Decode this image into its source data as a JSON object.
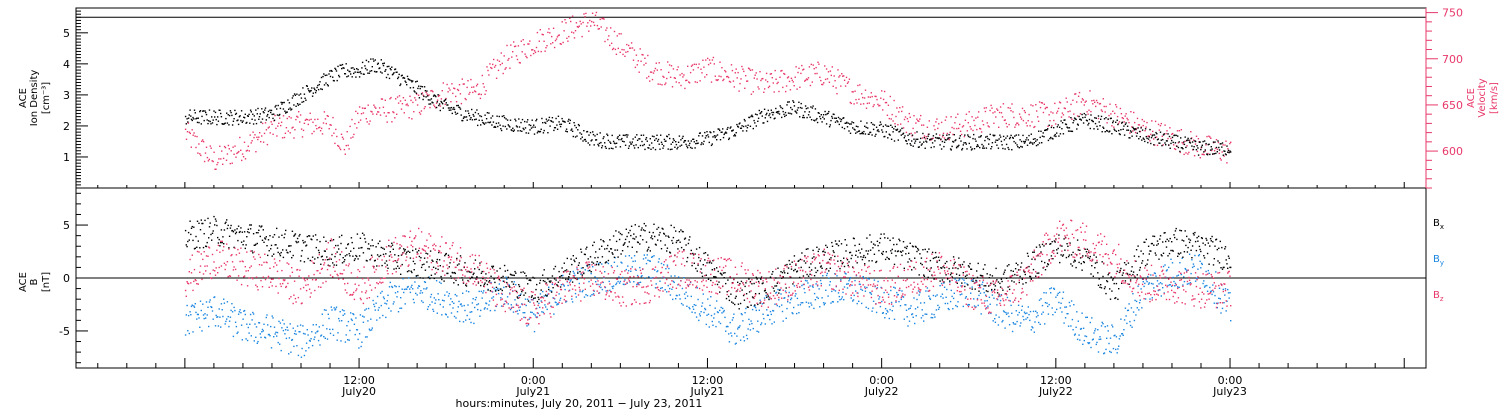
{
  "colors": {
    "black": "#000000",
    "pink": "#e8386a",
    "blue": "#1a86e0"
  },
  "chart_data": [
    {
      "type": "scatter",
      "panel": "top",
      "left_axis": {
        "label_lines": [
          "ACE",
          "Ion Density"
        ],
        "unit": "[cm⁻³]",
        "ticks": [
          "1",
          "2",
          "3",
          "4",
          "5"
        ],
        "ylim": [
          0.0,
          5.8
        ]
      },
      "right_axis": {
        "label_lines": [
          "ACE",
          "Velocity"
        ],
        "unit": "[km/s]",
        "ticks": [
          "600",
          "650",
          "700",
          "750"
        ],
        "ylim": [
          560,
          755
        ]
      },
      "series": [
        {
          "color": "black",
          "axis": "left",
          "x": [
            0,
            2,
            4,
            6,
            8,
            10,
            11,
            12,
            13,
            14,
            16,
            18,
            20,
            22,
            24,
            26,
            28,
            30,
            32,
            34,
            36,
            38,
            40,
            42,
            44,
            46,
            48,
            50,
            52,
            54,
            56,
            58,
            60,
            62,
            64,
            66,
            68,
            70,
            72
          ],
          "y": [
            2.3,
            2.3,
            2.3,
            2.4,
            3.0,
            3.6,
            3.8,
            3.8,
            4.0,
            3.8,
            3.2,
            2.6,
            2.3,
            2.1,
            2.0,
            2.1,
            1.6,
            1.5,
            1.5,
            1.5,
            1.6,
            1.9,
            2.4,
            2.6,
            2.3,
            2.0,
            1.9,
            1.6,
            1.5,
            1.5,
            1.5,
            1.5,
            1.9,
            2.2,
            2.0,
            1.7,
            1.5,
            1.3,
            1.3
          ]
        },
        {
          "color": "pink",
          "axis": "right",
          "x": [
            0,
            2,
            4,
            6,
            8,
            10,
            11,
            12,
            13,
            14,
            16,
            18,
            20,
            22,
            24,
            26,
            28,
            30,
            32,
            34,
            36,
            38,
            40,
            42,
            44,
            46,
            48,
            50,
            52,
            54,
            56,
            58,
            60,
            62,
            64,
            66,
            68,
            70,
            72
          ],
          "y": [
            620,
            590,
            605,
            625,
            630,
            630,
            605,
            640,
            645,
            645,
            650,
            665,
            665,
            700,
            718,
            730,
            742,
            715,
            690,
            680,
            690,
            680,
            672,
            680,
            685,
            665,
            655,
            630,
            625,
            630,
            640,
            640,
            640,
            655,
            640,
            625,
            615,
            605,
            600
          ]
        }
      ],
      "ref_line_right": 745
    },
    {
      "type": "scatter",
      "panel": "bottom",
      "left_axis": {
        "label_lines": [
          "ACE",
          "B"
        ],
        "unit": "[nT]",
        "ticks": [
          "-5",
          "0",
          "5"
        ],
        "ylim": [
          -8.5,
          8.5
        ]
      },
      "zero_line": 0,
      "legend": [
        {
          "text": "B",
          "sub": "x",
          "color": "black"
        },
        {
          "text": "B",
          "sub": "y",
          "color": "blue"
        },
        {
          "text": "B",
          "sub": "z",
          "color": "pink"
        }
      ],
      "series": [
        {
          "color": "black",
          "x": [
            0,
            2,
            4,
            6,
            8,
            10,
            12,
            14,
            16,
            18,
            20,
            22,
            24,
            26,
            28,
            30,
            32,
            34,
            36,
            38,
            40,
            42,
            44,
            46,
            48,
            50,
            52,
            54,
            56,
            58,
            60,
            62,
            64,
            66,
            68,
            70,
            72
          ],
          "y": [
            4.0,
            4.5,
            4.0,
            3.5,
            3.0,
            2.5,
            3.0,
            2.0,
            1.5,
            1.0,
            0.5,
            0.0,
            -1.0,
            0.5,
            2.0,
            3.5,
            4.0,
            3.5,
            1.0,
            -1.5,
            -1.0,
            1.0,
            2.0,
            2.5,
            3.0,
            2.0,
            1.0,
            0.5,
            -0.5,
            1.0,
            3.0,
            2.0,
            -1.0,
            2.5,
            3.5,
            3.0,
            2.0
          ]
        },
        {
          "color": "blue",
          "x": [
            0,
            2,
            4,
            6,
            8,
            10,
            12,
            14,
            16,
            18,
            20,
            22,
            24,
            26,
            28,
            30,
            32,
            34,
            36,
            38,
            40,
            42,
            44,
            46,
            48,
            50,
            52,
            54,
            56,
            58,
            60,
            62,
            64,
            66,
            68,
            70,
            72
          ],
          "y": [
            -4.0,
            -3.0,
            -4.5,
            -5.0,
            -6.0,
            -4.0,
            -5.0,
            -2.0,
            -1.0,
            -2.0,
            -3.0,
            -1.0,
            -3.5,
            -1.0,
            0.0,
            0.5,
            1.0,
            -1.0,
            -3.0,
            -5.0,
            -3.0,
            -2.0,
            -1.0,
            -1.0,
            -2.0,
            -3.0,
            -2.0,
            -1.0,
            -3.0,
            -4.0,
            -2.0,
            -5.0,
            -6.0,
            -1.0,
            0.5,
            1.0,
            -3.0
          ]
        },
        {
          "color": "pink",
          "x": [
            0,
            2,
            4,
            6,
            8,
            10,
            12,
            14,
            16,
            18,
            20,
            22,
            24,
            26,
            28,
            30,
            32,
            34,
            36,
            38,
            40,
            42,
            44,
            46,
            48,
            50,
            52,
            54,
            56,
            58,
            60,
            62,
            64,
            66,
            68,
            70,
            72
          ],
          "y": [
            0.0,
            2.0,
            1.0,
            0.5,
            -1.0,
            2.0,
            -1.0,
            2.0,
            3.0,
            2.0,
            1.0,
            -2.0,
            -3.0,
            -1.0,
            0.0,
            -1.0,
            -0.5,
            1.0,
            0.5,
            0.0,
            -1.0,
            0.0,
            1.0,
            0.0,
            -1.0,
            0.0,
            1.0,
            -1.0,
            -2.0,
            0.0,
            4.0,
            3.5,
            2.0,
            -0.5,
            -0.5,
            -1.0,
            -1.0
          ]
        }
      ]
    }
  ],
  "x_axis": {
    "xlim_hours": [
      -7.5,
      85.5
    ],
    "major_ticks": [
      {
        "hour": 12,
        "time": "12:00",
        "date": "July20"
      },
      {
        "hour": 24,
        "time": "0:00",
        "date": "July21"
      },
      {
        "hour": 36,
        "time": "12:00",
        "date": "July21"
      },
      {
        "hour": 48,
        "time": "0:00",
        "date": "July22"
      },
      {
        "hour": 60,
        "time": "12:00",
        "date": "July22"
      },
      {
        "hour": 72,
        "time": "0:00",
        "date": "July23"
      }
    ],
    "xlabel": "hours:minutes, July 20, 2011 − July 23, 2011"
  }
}
